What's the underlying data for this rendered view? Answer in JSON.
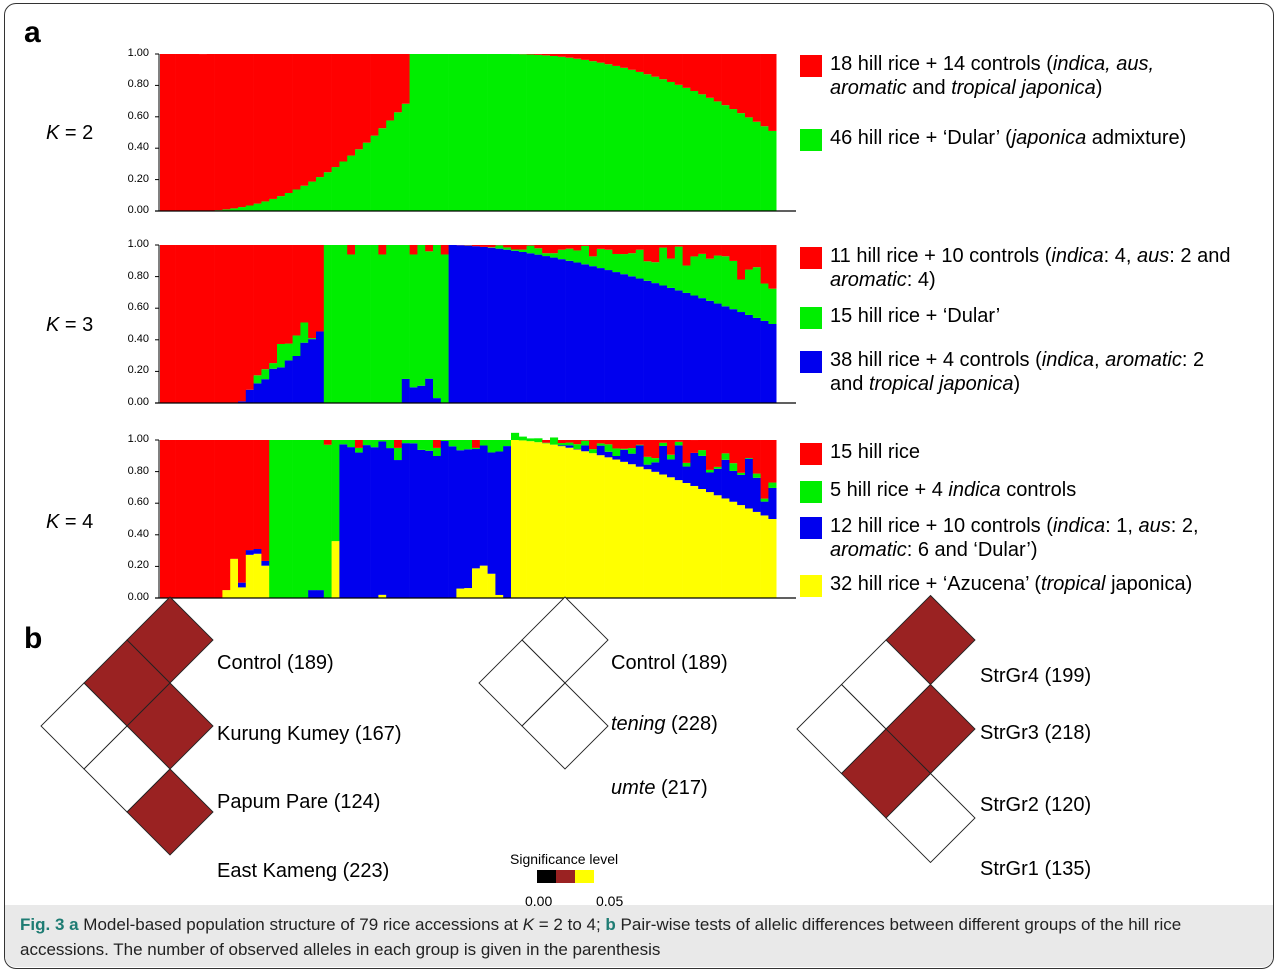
{
  "panel_a_letter": "a",
  "panel_b_letter": "b",
  "colors": {
    "red": "#ff0000",
    "green": "#00ee00",
    "blue": "#0000ee",
    "yellow": "#ffff00",
    "dark_red": "#9a2222",
    "black": "#000000"
  },
  "y_ticks": [
    "1.00",
    "0.80",
    "0.60",
    "0.40",
    "0.20",
    "0.00"
  ],
  "chart_data": [
    {
      "type": "bar",
      "k_label_prefix": "K",
      "k_label_value": "= 2",
      "n_accessions": 79,
      "series": [
        {
          "name": "red",
          "color": "#ff0000"
        },
        {
          "name": "green",
          "color": "#00ee00"
        }
      ],
      "ylim": [
        0,
        1
      ],
      "legend": [
        {
          "color": "#ff0000",
          "text_html": "18 hill rice + 14 controls (<i>indica, aus,</i><br><i>aromatic</i> and <i>tropical japonica</i>)"
        },
        {
          "color": "#00ee00",
          "text_html": "46 hill rice + ‘Dular’ (<i>japonica</i> admixture)"
        }
      ]
    },
    {
      "type": "bar",
      "k_label_prefix": "K",
      "k_label_value": "= 3",
      "n_accessions": 79,
      "series": [
        {
          "name": "red",
          "color": "#ff0000"
        },
        {
          "name": "green",
          "color": "#00ee00"
        },
        {
          "name": "blue",
          "color": "#0000ee"
        }
      ],
      "ylim": [
        0,
        1
      ],
      "legend": [
        {
          "color": "#ff0000",
          "text_html": "11 hill rice + 10 controls (<i>indica</i>: 4, <i>aus</i>: 2 and<br><i>aromatic</i>: 4)"
        },
        {
          "color": "#00ee00",
          "text_html": "15 hill rice + ‘Dular’"
        },
        {
          "color": "#0000ee",
          "text_html": "38 hill rice + 4 controls (<i>indica</i>, <i>aromatic</i>: 2<br>and <i>tropical japonica</i>)"
        }
      ]
    },
    {
      "type": "bar",
      "k_label_prefix": "K",
      "k_label_value": "= 4",
      "n_accessions": 79,
      "series": [
        {
          "name": "red",
          "color": "#ff0000"
        },
        {
          "name": "green",
          "color": "#00ee00"
        },
        {
          "name": "blue",
          "color": "#0000ee"
        },
        {
          "name": "yellow",
          "color": "#ffff00"
        }
      ],
      "ylim": [
        0,
        1
      ],
      "legend": [
        {
          "color": "#ff0000",
          "text_html": "15 hill rice"
        },
        {
          "color": "#00ee00",
          "text_html": "5 hill rice + 4 <i>indica</i> controls"
        },
        {
          "color": "#0000ee",
          "text_html": "12 hill rice + 10 controls (<i>indica</i>: 1, <i>aus</i>: 2,<br><i>aromatic</i>: 6 and ‘Dular’)"
        },
        {
          "color": "#ffff00",
          "text_html": "32 hill rice + ‘Azucena’ (<i>tropical</i> japonica)"
        }
      ]
    }
  ],
  "diagrams": [
    {
      "labels_html": [
        "Control (189)",
        "Kurung Kumey (167)",
        "Papum Pare (124)",
        "East Kameng (223)"
      ],
      "cells": [
        [
          "sig",
          "sig",
          "none"
        ],
        [
          "sig",
          "none"
        ],
        [
          "sig"
        ]
      ]
    },
    {
      "labels_html": [
        "Control (189)",
        "<i>tening</i> (228)",
        "<i>umte</i> (217)"
      ],
      "cells": [
        [
          "none",
          "none"
        ],
        [
          "none"
        ]
      ]
    },
    {
      "labels_html": [
        "StrGr4 (199)",
        "StrGr3 (218)",
        "StrGr2 (120)",
        "StrGr1 (135)"
      ],
      "cells": [
        [
          "sig",
          "none",
          "none"
        ],
        [
          "sig",
          "sig"
        ],
        [
          "none"
        ]
      ]
    }
  ],
  "significance": {
    "title": "Significance level",
    "min_label": "0.00",
    "max_label": "0.05"
  },
  "caption_html": "<b>Fig. 3 a</b> Model-based population structure of 79 rice accessions at <i>K</i> = 2 to 4; <b>b</b> Pair-wise tests of allelic differences between different groups of the hill rice accessions. The number of observed alleles in each group is given in the parenthesis"
}
